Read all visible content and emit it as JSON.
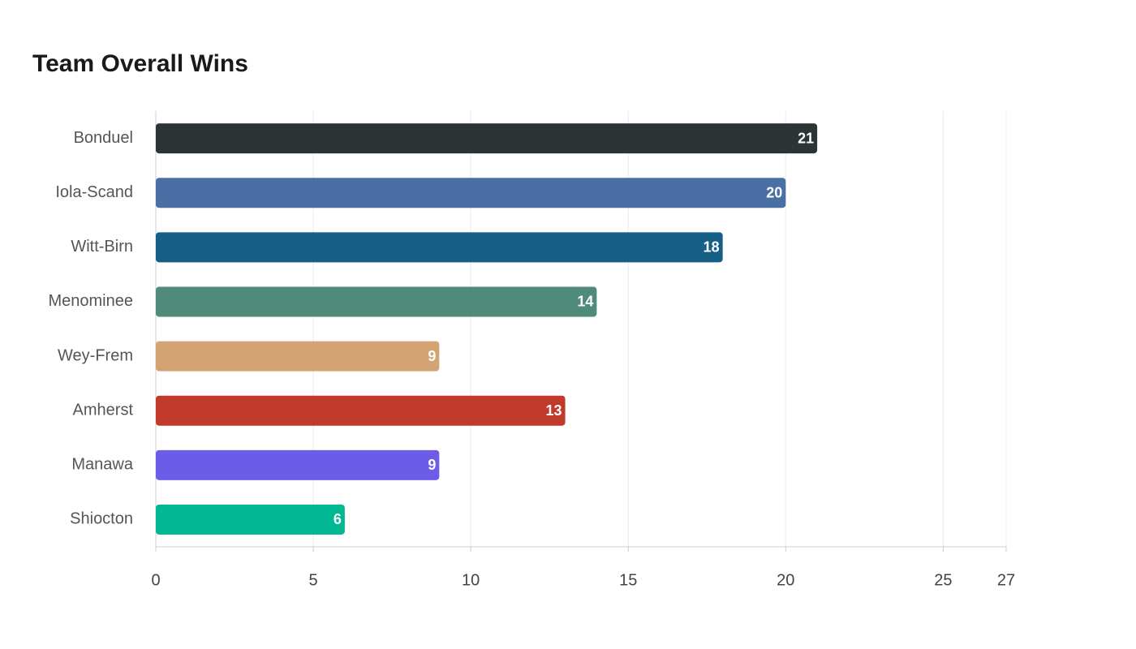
{
  "chart_data": {
    "type": "hbar",
    "title": "Team Overall Wins",
    "categories": [
      "Bonduel",
      "Iola-Scand",
      "Witt-Birn",
      "Menominee",
      "Wey-Frem",
      "Amherst",
      "Manawa",
      "Shiocton"
    ],
    "values": [
      21,
      20,
      18,
      14,
      9,
      13,
      9,
      6
    ],
    "colors": [
      "#2d3436",
      "#4a6fa5",
      "#166088",
      "#4f8a7a",
      "#d4a373",
      "#c0392b",
      "#6c5ce7",
      "#00b894"
    ],
    "xlim": [
      0,
      27
    ],
    "xticks": [
      0,
      5,
      10,
      15,
      20,
      25,
      27
    ],
    "grid": true
  }
}
